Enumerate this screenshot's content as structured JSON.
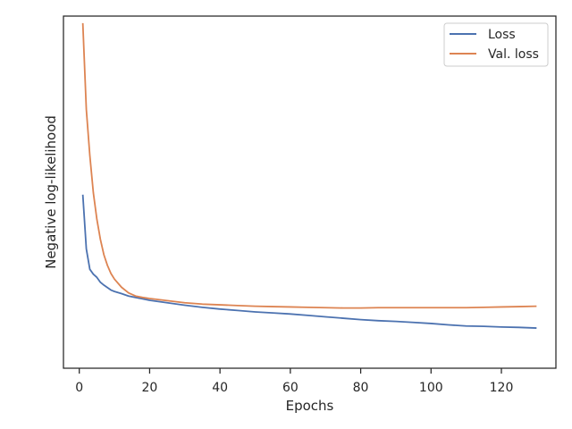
{
  "chart_data": {
    "type": "line",
    "xlabel": "Epochs",
    "ylabel": "Negative log-likelihood",
    "xlim": [
      -4.5,
      135.5
    ],
    "ylim": [
      0,
      1.0
    ],
    "xticks": [
      0,
      20,
      40,
      60,
      80,
      100,
      120
    ],
    "yticks_shown": false,
    "grid": false,
    "legend_position": "top-right",
    "series": [
      {
        "name": "Loss",
        "color": "#4c72b0",
        "x": [
          1,
          2,
          3,
          4,
          5,
          6,
          7,
          8,
          9,
          10,
          12,
          14,
          16,
          18,
          20,
          25,
          30,
          35,
          40,
          45,
          50,
          55,
          60,
          65,
          70,
          75,
          80,
          85,
          90,
          95,
          100,
          105,
          110,
          115,
          120,
          125,
          130
        ],
        "y": [
          0.493,
          0.339,
          0.281,
          0.267,
          0.258,
          0.244,
          0.236,
          0.229,
          0.222,
          0.218,
          0.212,
          0.205,
          0.201,
          0.197,
          0.193,
          0.186,
          0.179,
          0.173,
          0.168,
          0.164,
          0.16,
          0.157,
          0.154,
          0.15,
          0.146,
          0.142,
          0.138,
          0.135,
          0.133,
          0.13,
          0.127,
          0.123,
          0.12,
          0.119,
          0.117,
          0.116,
          0.114
        ]
      },
      {
        "name": "Val. loss",
        "color": "#dd8452",
        "x": [
          1,
          2,
          3,
          4,
          5,
          6,
          7,
          8,
          9,
          10,
          12,
          14,
          16,
          18,
          20,
          25,
          30,
          35,
          40,
          45,
          50,
          55,
          60,
          65,
          70,
          75,
          80,
          85,
          90,
          95,
          100,
          105,
          110,
          115,
          120,
          125,
          130
        ],
        "y": [
          0.98,
          0.735,
          0.604,
          0.498,
          0.423,
          0.366,
          0.322,
          0.292,
          0.269,
          0.253,
          0.23,
          0.214,
          0.205,
          0.201,
          0.198,
          0.192,
          0.186,
          0.182,
          0.18,
          0.178,
          0.176,
          0.175,
          0.174,
          0.173,
          0.172,
          0.171,
          0.171,
          0.172,
          0.172,
          0.172,
          0.172,
          0.172,
          0.172,
          0.173,
          0.174,
          0.175,
          0.176
        ]
      }
    ]
  }
}
